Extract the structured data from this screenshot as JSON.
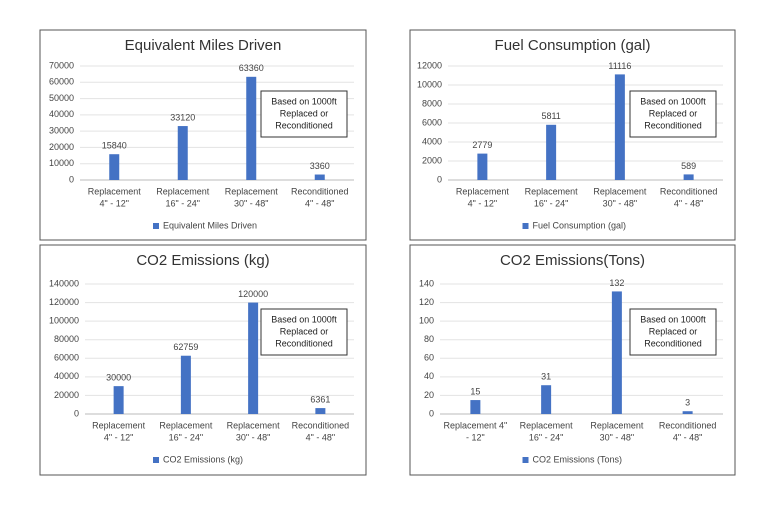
{
  "chart_data": [
    {
      "type": "bar",
      "title": "Equivalent Miles Driven",
      "categories": [
        [
          "Replacement",
          "4\" - 12\""
        ],
        [
          "Replacement",
          "16\" - 24\""
        ],
        [
          "Replacement",
          "30\" - 48\""
        ],
        [
          "Reconditioned",
          "4\" - 48\""
        ]
      ],
      "series": [
        {
          "name": "Equivalent Miles Driven",
          "color": "#4472c4",
          "values": [
            15840,
            33120,
            63360,
            3360
          ]
        }
      ],
      "ylim": [
        0,
        70000
      ],
      "yticks": [
        0,
        10000,
        20000,
        30000,
        40000,
        50000,
        60000,
        70000
      ],
      "grid": true,
      "annotation": [
        "Based on 1000ft",
        "Replaced or",
        "Reconditioned"
      ]
    },
    {
      "type": "bar",
      "title": "Fuel Consumption (gal)",
      "categories": [
        [
          "Replacement",
          "4\" - 12\""
        ],
        [
          "Replacement",
          "16\" - 24\""
        ],
        [
          "Replacement",
          "30\" - 48\""
        ],
        [
          "Reconditioned",
          "4\" - 48\""
        ]
      ],
      "series": [
        {
          "name": "Fuel Consumption (gal)",
          "color": "#4472c4",
          "values": [
            2779,
            5811,
            11116,
            589
          ]
        }
      ],
      "ylim": [
        0,
        12000
      ],
      "yticks": [
        0,
        2000,
        4000,
        6000,
        8000,
        10000,
        12000
      ],
      "grid": true,
      "annotation": [
        "Based on 1000ft",
        "Replaced or",
        "Reconditioned"
      ]
    },
    {
      "type": "bar",
      "title": "CO2 Emissions (kg)",
      "categories": [
        [
          "Replacement",
          "4\" - 12\""
        ],
        [
          "Replacement",
          "16\" - 24\""
        ],
        [
          "Replacement",
          "30\" - 48\""
        ],
        [
          "Reconditioned",
          "4\" - 48\""
        ]
      ],
      "series": [
        {
          "name": "CO2 Emissions (kg)",
          "color": "#4472c4",
          "values": [
            30000,
            62759,
            120000,
            6361
          ]
        }
      ],
      "ylim": [
        0,
        140000
      ],
      "yticks": [
        0,
        20000,
        40000,
        60000,
        80000,
        100000,
        120000,
        140000
      ],
      "grid": true,
      "annotation": [
        "Based on 1000ft",
        "Replaced or",
        "Reconditioned"
      ]
    },
    {
      "type": "bar",
      "title": "CO2 Emissions(Tons)",
      "categories": [
        [
          "Replacement 4\"",
          "- 12\""
        ],
        [
          "Replacement",
          "16\" - 24\""
        ],
        [
          "Replacement",
          "30\" - 48\""
        ],
        [
          "Reconditioned",
          "4\" - 48\""
        ]
      ],
      "series": [
        {
          "name": "CO2 Emissions (Tons)",
          "color": "#4472c4",
          "values": [
            15,
            31,
            132,
            3
          ]
        }
      ],
      "ylim": [
        0,
        140
      ],
      "yticks": [
        0,
        20,
        40,
        60,
        80,
        100,
        120,
        140
      ],
      "grid": true,
      "annotation": [
        "Based on 1000ft",
        "Replaced or",
        "Reconditioned"
      ]
    }
  ]
}
